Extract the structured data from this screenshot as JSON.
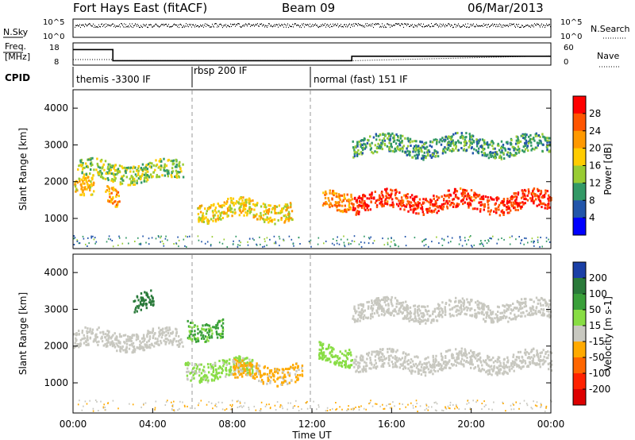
{
  "header": {
    "station": "Fort Hays East (fitACF)",
    "beam": "Beam 09",
    "date": "06/Mar/2013"
  },
  "top_panel": {
    "left_label": "N.Sky",
    "right_label": "N.Search",
    "left_ticks": [
      "10^5",
      "10^0"
    ],
    "right_ticks": [
      "10^5",
      "10^0"
    ]
  },
  "freq_panel": {
    "left_label_line1": "Freq.",
    "left_label_line2": "[MHz]",
    "left_ticks": [
      "18",
      "8"
    ],
    "right_label": "Nave",
    "right_ticks": [
      "60",
      "0"
    ],
    "cpid_label": "CPID"
  },
  "cpid_segments": [
    {
      "label": "themis -3300 IF",
      "start_hour": 0
    },
    {
      "label": "rbsp 200 IF",
      "start_hour": 6
    },
    {
      "label": "normal (fast) 151 IF",
      "start_hour": 12
    }
  ],
  "power_panel": {
    "ylabel": "Slant Range [km]",
    "cbar_label": "Power [dB]",
    "cbar_ticks": [
      "28",
      "24",
      "20",
      "16",
      "12",
      "8",
      "4"
    ],
    "cbar_colors": [
      "#ff0000",
      "#ff5500",
      "#ff9900",
      "#ffcc00",
      "#99cc33",
      "#339966",
      "#2255aa",
      "#0000ff"
    ]
  },
  "velocity_panel": {
    "ylabel": "Slant Range [km]",
    "cbar_label": "Velocity [m s-1]",
    "cbar_ticks": [
      "200",
      "100",
      "50",
      "15",
      "-15",
      "-50",
      "-100",
      "-200"
    ],
    "cbar_colors": [
      "#1a3fa6",
      "#2a7a3a",
      "#3aa03a",
      "#88dd44",
      "#c8c8c0",
      "#ffaa00",
      "#ff6600",
      "#ff2200",
      "#dd0000"
    ]
  },
  "axes": {
    "xlabel": "Time UT",
    "x_ticks": [
      "00:00",
      "04:00",
      "08:00",
      "12:00",
      "16:00",
      "20:00",
      "00:00"
    ],
    "y_ticks": [
      "1000",
      "2000",
      "3000",
      "4000"
    ]
  },
  "chart_data": [
    {
      "type": "line",
      "title": "Fort Hays East (fitACF) Beam 09 06/Mar/2013",
      "series": [
        {
          "name": "Freq.",
          "x": [
            0,
            2,
            2,
            14,
            14,
            24
          ],
          "values": [
            15,
            15,
            10,
            10,
            12,
            12
          ]
        },
        {
          "name": "Nave",
          "x": [
            0,
            2,
            2,
            14,
            24
          ],
          "values": [
            15,
            15,
            12,
            12,
            25
          ]
        }
      ],
      "xlabel": "Time UT",
      "xlim": [
        0,
        24
      ],
      "ylim": [
        8,
        18
      ]
    },
    {
      "type": "heatmap",
      "title": "Power",
      "xlabel": "Time UT",
      "ylabel": "Slant Range [km]",
      "xlim": [
        0,
        24
      ],
      "ylim": [
        180,
        4500
      ],
      "colorbar": {
        "label": "Power [dB]",
        "range": [
          0,
          32
        ]
      },
      "features": [
        {
          "t_start": 0.0,
          "t_end": 1.0,
          "range_center": 1800,
          "value_db": 20
        },
        {
          "t_start": 0.2,
          "t_end": 5.5,
          "range_center": 2300,
          "value_db": 14
        },
        {
          "t_start": 1.6,
          "t_end": 2.3,
          "range_center": 1650,
          "value_db": 22
        },
        {
          "t_start": 6.2,
          "t_end": 11.0,
          "range_center": 1250,
          "value_db": 18
        },
        {
          "t_start": 12.5,
          "t_end": 14.0,
          "range_center": 1550,
          "value_db": 24
        },
        {
          "t_start": 14.0,
          "t_end": 24.0,
          "range_center": 1480,
          "value_db": 30
        },
        {
          "t_start": 14.0,
          "t_end": 24.0,
          "range_center": 3000,
          "value_db": 10
        }
      ]
    },
    {
      "type": "heatmap",
      "title": "Velocity",
      "xlabel": "Time UT",
      "ylabel": "Slant Range [km]",
      "xlim": [
        0,
        24
      ],
      "ylim": [
        180,
        4500
      ],
      "colorbar": {
        "label": "Velocity [m s-1]",
        "range": [
          -250,
          250
        ]
      },
      "features": [
        {
          "t_start": 0.0,
          "t_end": 5.5,
          "range_center": 2200,
          "velocity": 0
        },
        {
          "t_start": 3.0,
          "t_end": 4.0,
          "range_center": 3300,
          "velocity": 200
        },
        {
          "t_start": 5.7,
          "t_end": 7.5,
          "range_center": 2500,
          "velocity": 100
        },
        {
          "t_start": 5.6,
          "t_end": 9.0,
          "range_center": 1400,
          "velocity": 40
        },
        {
          "t_start": 8.0,
          "t_end": 11.5,
          "range_center": 1300,
          "velocity": -40
        },
        {
          "t_start": 12.3,
          "t_end": 14.0,
          "range_center": 1800,
          "velocity": 50
        },
        {
          "t_start": 14.0,
          "t_end": 24.0,
          "range_center": 1600,
          "velocity": 0
        },
        {
          "t_start": 14.0,
          "t_end": 24.0,
          "range_center": 3000,
          "velocity": 0
        }
      ]
    }
  ]
}
